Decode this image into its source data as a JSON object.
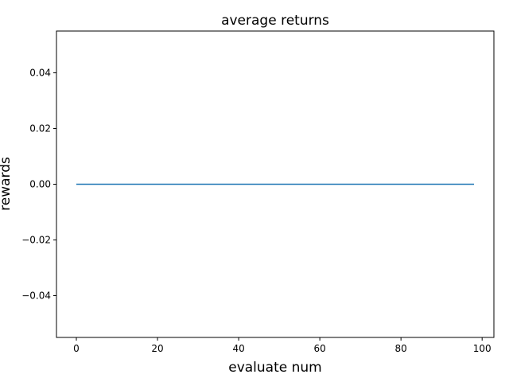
{
  "chart_data": {
    "type": "line",
    "title": "average returns",
    "xlabel": "evaluate num",
    "ylabel": "rewards",
    "xlim": [
      -4.9,
      102.9
    ],
    "ylim": [
      -0.055,
      0.055
    ],
    "x_ticks": [
      0,
      20,
      40,
      60,
      80,
      100
    ],
    "x_tick_labels": [
      "0",
      "20",
      "40",
      "60",
      "80",
      "100"
    ],
    "y_ticks": [
      -0.04,
      -0.02,
      0.0,
      0.02,
      0.04
    ],
    "y_tick_labels": [
      "−0.04",
      "−0.02",
      "0.00",
      "0.02",
      "0.04"
    ],
    "grid": false,
    "series": [
      {
        "color": "#1f77b4",
        "x": [
          0,
          98
        ],
        "y": [
          0.0,
          0.0
        ]
      }
    ]
  }
}
